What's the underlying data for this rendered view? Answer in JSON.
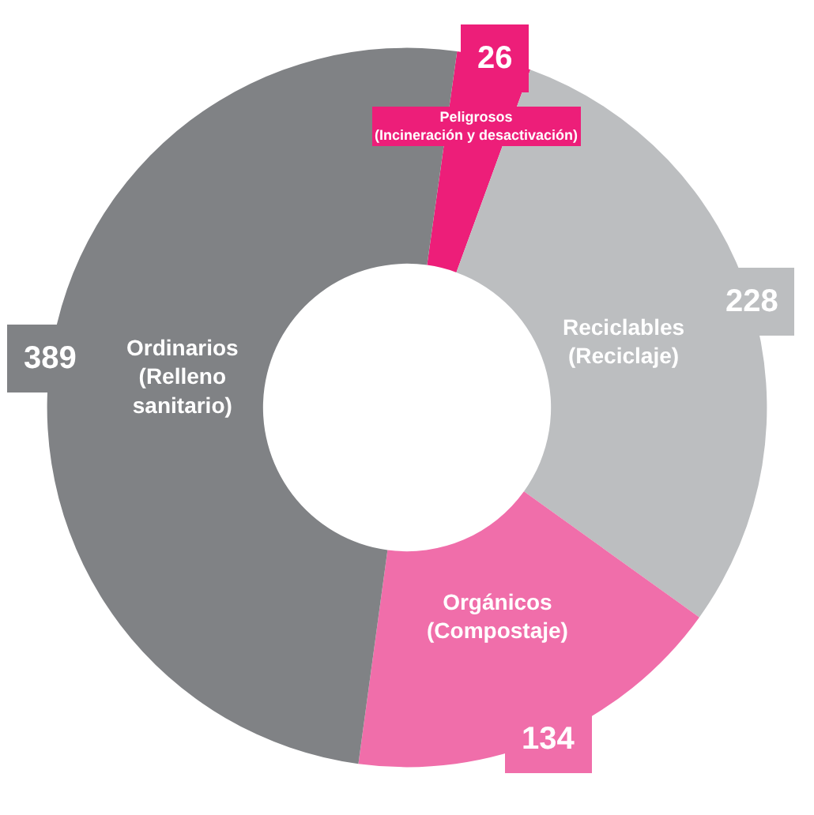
{
  "chart_data": {
    "type": "donut",
    "categories": [
      "Peligrosos (Incineración y desactivación)",
      "Reciclables (Reciclaje)",
      "Orgánicos (Compostaje)",
      "Ordinarios (Relleno sanitario)"
    ],
    "values": [
      26,
      228,
      134,
      389
    ],
    "colors": [
      "#ed1e79",
      "#bcbec0",
      "#f06eaa",
      "#808285"
    ],
    "data_labels": true,
    "legend": false
  }
}
